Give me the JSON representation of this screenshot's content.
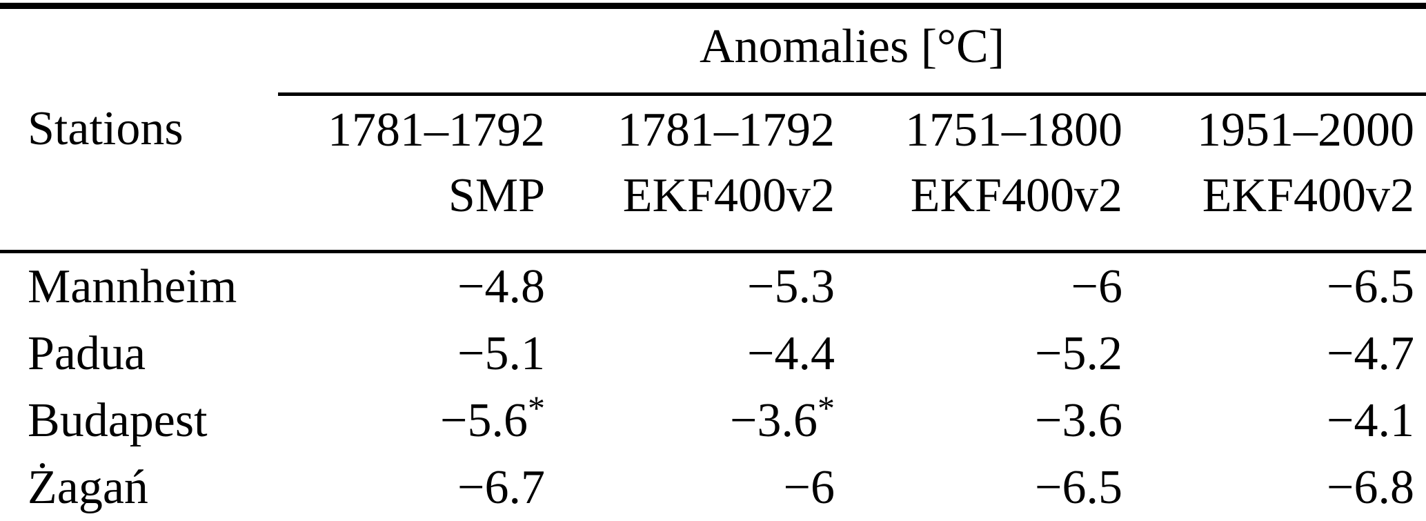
{
  "table": {
    "group_header": "Anomalies [°C]",
    "row_header": "Stations",
    "columns": [
      {
        "period": "1781–1792",
        "dataset": "SMP"
      },
      {
        "period": "1781–1792",
        "dataset": "EKF400v2"
      },
      {
        "period": "1751–1800",
        "dataset": "EKF400v2"
      },
      {
        "period": "1951–2000",
        "dataset": "EKF400v2"
      }
    ],
    "rows": [
      {
        "station": "Mannheim",
        "values": [
          {
            "v": "−4.8"
          },
          {
            "v": "−5.3"
          },
          {
            "v": "−6"
          },
          {
            "v": "−6.5"
          }
        ]
      },
      {
        "station": "Padua",
        "values": [
          {
            "v": "−5.1"
          },
          {
            "v": "−4.4"
          },
          {
            "v": "−5.2"
          },
          {
            "v": "−4.7"
          }
        ]
      },
      {
        "station": "Budapest",
        "values": [
          {
            "v": "−5.6",
            "sup": "*"
          },
          {
            "v": "−3.6",
            "sup": "*"
          },
          {
            "v": "−3.6"
          },
          {
            "v": "−4.1"
          }
        ]
      },
      {
        "station": "Żagań",
        "values": [
          {
            "v": "−6.7"
          },
          {
            "v": "−6"
          },
          {
            "v": "−6.5"
          },
          {
            "v": "−6.8"
          }
        ]
      }
    ],
    "colors": {
      "text": "#000000",
      "background": "#ffffff",
      "rule": "#000000"
    }
  }
}
